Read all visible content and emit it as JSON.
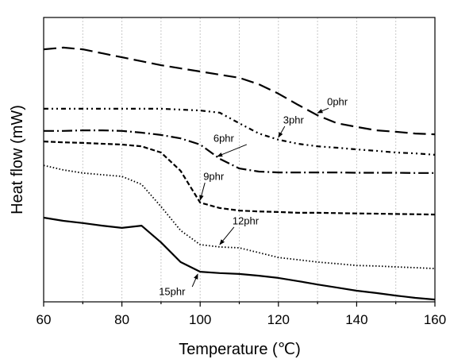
{
  "chart_data": {
    "type": "line",
    "xlabel": "Temperature (℃)",
    "ylabel": "Heat flow (mW)",
    "x": [
      60,
      65,
      70,
      75,
      80,
      85,
      90,
      95,
      100,
      105,
      110,
      115,
      120,
      125,
      130,
      135,
      140,
      145,
      150,
      155,
      160
    ],
    "xlim": [
      60,
      160
    ],
    "xticks": [
      60,
      80,
      100,
      120,
      140,
      160
    ],
    "minor_xticks": [
      70,
      90,
      110,
      130,
      150
    ],
    "ylim": [
      0,
      100
    ],
    "grid": true,
    "series": [
      {
        "name": "0phr",
        "color": "#000000",
        "values": [
          88.8,
          89.4,
          88.8,
          87.4,
          86.0,
          84.6,
          83.2,
          82.1,
          81.0,
          79.9,
          78.8,
          76.5,
          73.2,
          69.3,
          65.6,
          62.8,
          61.5,
          60.3,
          59.8,
          59.2,
          58.9
        ]
      },
      {
        "name": "3phr",
        "color": "#000000",
        "values": [
          67.9,
          67.9,
          67.9,
          67.9,
          67.9,
          67.9,
          67.9,
          67.6,
          67.3,
          66.5,
          62.8,
          59.2,
          57.0,
          55.6,
          54.7,
          54.2,
          53.6,
          53.1,
          52.5,
          52.2,
          51.7
        ]
      },
      {
        "name": "6phr",
        "color": "#000000",
        "values": [
          60.1,
          60.1,
          60.3,
          60.3,
          60.1,
          59.5,
          58.7,
          57.5,
          55.3,
          50.3,
          46.9,
          45.8,
          45.5,
          45.5,
          45.5,
          45.5,
          45.4,
          45.4,
          45.4,
          45.3,
          45.3
        ]
      },
      {
        "name": "9phr",
        "color": "#000000",
        "values": [
          56.4,
          56.1,
          55.9,
          55.6,
          55.3,
          54.7,
          52.5,
          46.1,
          34.9,
          33.0,
          32.1,
          31.8,
          31.6,
          31.3,
          31.3,
          31.2,
          31.1,
          31.0,
          30.9,
          30.8,
          30.7
        ]
      },
      {
        "name": "12phr",
        "color": "#000000",
        "values": [
          48.0,
          46.4,
          45.3,
          44.7,
          44.1,
          41.3,
          33.5,
          25.1,
          20.1,
          19.3,
          19.0,
          17.3,
          15.6,
          14.8,
          14.0,
          13.4,
          12.8,
          12.6,
          12.3,
          12.0,
          11.7
        ]
      },
      {
        "name": "15phr",
        "color": "#000000",
        "values": [
          29.6,
          28.5,
          27.7,
          26.8,
          26.0,
          26.8,
          20.9,
          14.0,
          10.6,
          10.1,
          9.8,
          9.2,
          8.4,
          7.3,
          6.1,
          5.0,
          3.9,
          3.1,
          2.2,
          1.4,
          0.8
        ]
      }
    ]
  }
}
